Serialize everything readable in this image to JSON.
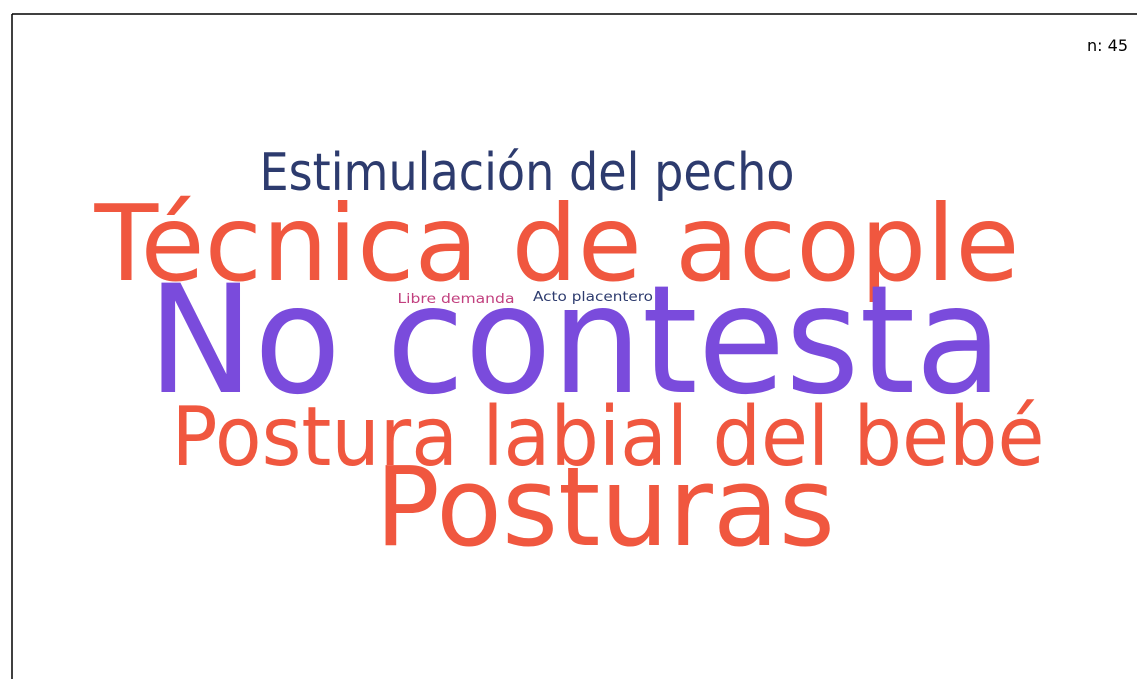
{
  "sample_size": "n: 45",
  "words": [
    {
      "text": "Estimulación del pecho",
      "color": "#2d3b6e"
    },
    {
      "text": "Técnica de acople",
      "color": "#f0573f"
    },
    {
      "text": "Libre demanda",
      "color": "#c2407f"
    },
    {
      "text": "Acto placentero",
      "color": "#2d3b6e"
    },
    {
      "text": "No contesta",
      "color": "#7a4bdc"
    },
    {
      "text": "Postura labial del bebé",
      "color": "#f0573f"
    },
    {
      "text": "Posturas",
      "color": "#f0573f"
    }
  ]
}
